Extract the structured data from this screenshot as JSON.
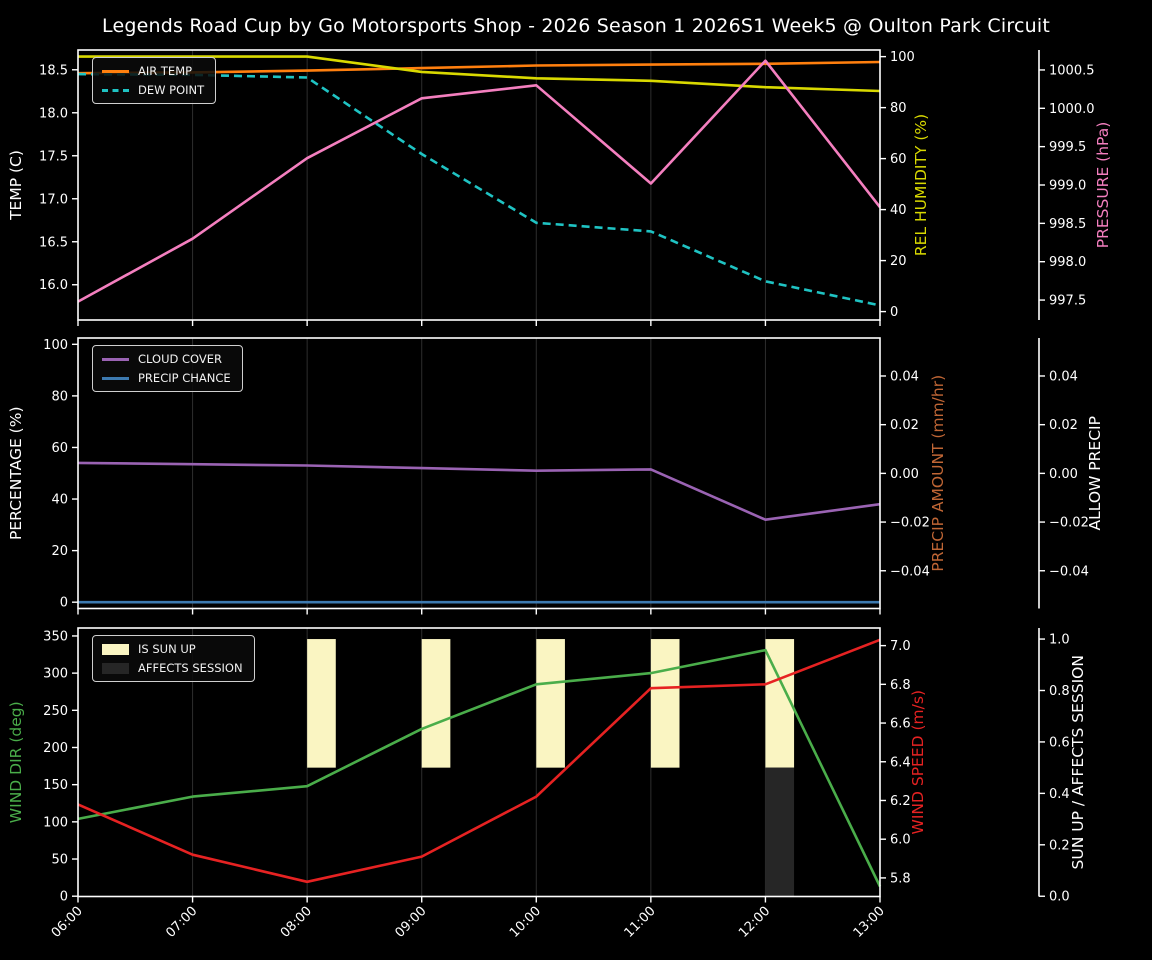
{
  "title": "Legends Road Cup by Go Motorsports Shop - 2026 Season 1 2026S1 Week5 @ Oulton Park Circuit",
  "colors": {
    "background": "#000000",
    "spine": "#ffffff",
    "gridline": "#2d2d2d",
    "air_temp": "#ff7f0e",
    "dew_point": "#1fc3c3",
    "rel_humidity": "#d9d900",
    "pressure": "#f47fbf",
    "cloud_cover": "#9a63b3",
    "precip_chance": "#3d7ab0",
    "precip_amount": "#c06635",
    "wind_dir": "#4aad4a",
    "wind_speed": "#e62222",
    "sun_up": "#faf5c2",
    "affects_session": "#262626"
  },
  "x": {
    "tick_labels": [
      "06:00",
      "07:00",
      "08:00",
      "09:00",
      "10:00",
      "11:00",
      "12:00",
      "13:00"
    ],
    "hours": [
      6,
      7,
      8,
      9,
      10,
      11,
      12,
      13
    ]
  },
  "chart_data": [
    {
      "id": "temperature-panel",
      "type": "line",
      "left_axis": {
        "label": "TEMP (C)",
        "color": "#ffffff",
        "ticks": [
          16.0,
          16.5,
          17.0,
          17.5,
          18.0,
          18.5
        ],
        "decimals": 1,
        "range": [
          15.59,
          18.73
        ]
      },
      "right_axes": [
        {
          "label": "REL HUMIDITY (%)",
          "color": "#d9d900",
          "ticks": [
            0,
            20,
            40,
            60,
            80,
            100
          ],
          "decimals": 0,
          "range": [
            -3.3,
            102.6
          ]
        },
        {
          "label": "PRESSURE (hPa)",
          "color": "#f47fbf",
          "ticks": [
            997.5,
            998.0,
            998.5,
            999.0,
            999.5,
            1000.0,
            1000.5
          ],
          "decimals": 1,
          "range": [
            997.24,
            1000.76
          ]
        }
      ],
      "series": [
        {
          "name": "AIR TEMP",
          "axis": "left",
          "color": "#ff7f0e",
          "dash": false,
          "values": [
            18.46,
            18.47,
            18.49,
            18.52,
            18.55,
            18.56,
            18.57,
            18.59
          ]
        },
        {
          "name": "DEW POINT",
          "axis": "left",
          "color": "#1fc3c3",
          "dash": true,
          "values": [
            18.45,
            18.44,
            18.41,
            17.52,
            16.72,
            16.62,
            16.04,
            15.76
          ]
        },
        {
          "name": "REL HUMIDITY",
          "axis": "r0",
          "color": "#d9d900",
          "dash": false,
          "values": [
            100,
            100,
            100,
            94,
            91.5,
            90.5,
            88,
            86.5
          ]
        },
        {
          "name": "PRESSURE",
          "axis": "r1",
          "color": "#f47fbf",
          "dash": false,
          "values": [
            997.48,
            998.3,
            999.35,
            1000.13,
            1000.3,
            999.02,
            1000.62,
            998.71
          ]
        }
      ],
      "legend": [
        {
          "label": "AIR TEMP",
          "swatch": "line",
          "color": "#ff7f0e"
        },
        {
          "label": "DEW POINT",
          "swatch": "dashed-line",
          "color": "#1fc3c3"
        }
      ]
    },
    {
      "id": "precipitation-panel",
      "type": "line",
      "left_axis": {
        "label": "PERCENTAGE (%)",
        "color": "#ffffff",
        "ticks": [
          0,
          20,
          40,
          60,
          80,
          100
        ],
        "decimals": 0,
        "range": [
          -2.45,
          102.45
        ]
      },
      "right_axes": [
        {
          "label": "PRECIP AMOUNT (mm/hr)",
          "color": "#c06635",
          "ticks": [
            -0.04,
            -0.02,
            0,
            0.02,
            0.04
          ],
          "decimals": 2,
          "range": [
            -0.0555,
            0.0556
          ]
        },
        {
          "label": "ALLOW PRECIP",
          "color": "#ffffff",
          "ticks": [
            -0.04,
            -0.02,
            0,
            0.02,
            0.04
          ],
          "decimals": 2,
          "range": [
            -0.0555,
            0.0556
          ]
        }
      ],
      "series": [
        {
          "name": "CLOUD COVER",
          "axis": "left",
          "color": "#9a63b3",
          "dash": false,
          "values": [
            54,
            53.5,
            53,
            52,
            51,
            51.5,
            32,
            38
          ]
        },
        {
          "name": "PRECIP CHANCE",
          "axis": "left",
          "color": "#3d7ab0",
          "dash": false,
          "values": [
            0,
            0,
            0,
            0,
            0,
            0,
            0,
            0
          ]
        }
      ],
      "legend": [
        {
          "label": "CLOUD COVER",
          "swatch": "line",
          "color": "#9a63b3"
        },
        {
          "label": "PRECIP CHANCE",
          "swatch": "line",
          "color": "#3d7ab0"
        }
      ]
    },
    {
      "id": "wind-panel",
      "type": "line",
      "left_axis": {
        "label": "WIND DIR (deg)",
        "color": "#4aad4a",
        "ticks": [
          0,
          50,
          100,
          150,
          200,
          250,
          300,
          350
        ],
        "decimals": 0,
        "range": [
          -0.4,
          360.7
        ]
      },
      "right_axes": [
        {
          "label": "WIND SPEED (m/s)",
          "color": "#e62222",
          "ticks": [
            5.8,
            6.0,
            6.2,
            6.4,
            6.6,
            6.8,
            7.0
          ],
          "decimals": 1,
          "range": [
            5.704,
            7.091
          ]
        },
        {
          "label": "SUN UP / AFFECTS SESSION",
          "color": "#ffffff",
          "ticks": [
            0.0,
            0.2,
            0.4,
            0.6,
            0.8,
            1.0
          ],
          "decimals": 1,
          "range": [
            -0.001,
            1.043
          ]
        }
      ],
      "series": [
        {
          "name": "WIND DIR",
          "axis": "left",
          "color": "#4aad4a",
          "dash": false,
          "values": [
            104,
            134,
            148,
            225,
            285,
            300,
            331,
            13
          ]
        },
        {
          "name": "WIND SPEED",
          "axis": "r0",
          "color": "#e62222",
          "dash": false,
          "values": [
            6.18,
            5.92,
            5.78,
            5.91,
            6.22,
            6.78,
            6.8,
            7.03
          ]
        }
      ],
      "bars": [
        {
          "name": "IS SUN UP",
          "axis": "r1",
          "color": "#faf5c2",
          "span": [
            0.5,
            1.0
          ],
          "width_hours": 0.25,
          "hours": [
            8,
            9,
            10,
            11,
            12
          ]
        },
        {
          "name": "AFFECTS SESSION",
          "axis": "r1",
          "color": "#262626",
          "span": [
            0.0,
            0.5
          ],
          "width_hours": 0.25,
          "hours": [
            12
          ]
        }
      ],
      "legend": [
        {
          "label": "IS SUN UP",
          "swatch": "patch",
          "color": "#faf5c2"
        },
        {
          "label": "AFFECTS SESSION",
          "swatch": "patch",
          "color": "#262626"
        }
      ]
    }
  ]
}
